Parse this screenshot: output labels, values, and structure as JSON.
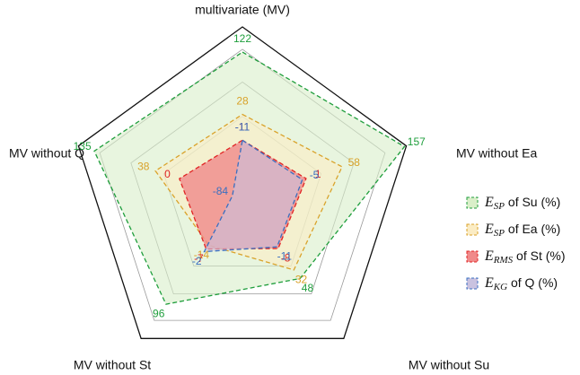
{
  "chart_data": {
    "type": "radar",
    "categories": [
      "multivariate (MV)",
      "MV without Ea",
      "MV without Su",
      "MV without St",
      "MV without Q"
    ],
    "rlim": [
      -100,
      160
    ],
    "series": [
      {
        "name": "ESP of Su (%)",
        "color": "#1f9e3c",
        "fill": "#d9efc9",
        "values": [
          122,
          157,
          48,
          96,
          135
        ]
      },
      {
        "name": "ESP of Ea (%)",
        "color": "#d9a22a",
        "fill": "#fbecc4",
        "values": [
          28,
          58,
          32,
          -14,
          38
        ]
      },
      {
        "name": "ERMS of St (%)",
        "color": "#e02424",
        "fill": "#f08a8a",
        "values": [
          -11,
          1,
          -8,
          -7,
          0
        ]
      },
      {
        "name": "EKG of Q (%)",
        "color": "#3a6fc0",
        "fill": "#c9c2e0",
        "values": [
          -11,
          -5,
          -11,
          -2,
          -84
        ]
      }
    ]
  }
}
